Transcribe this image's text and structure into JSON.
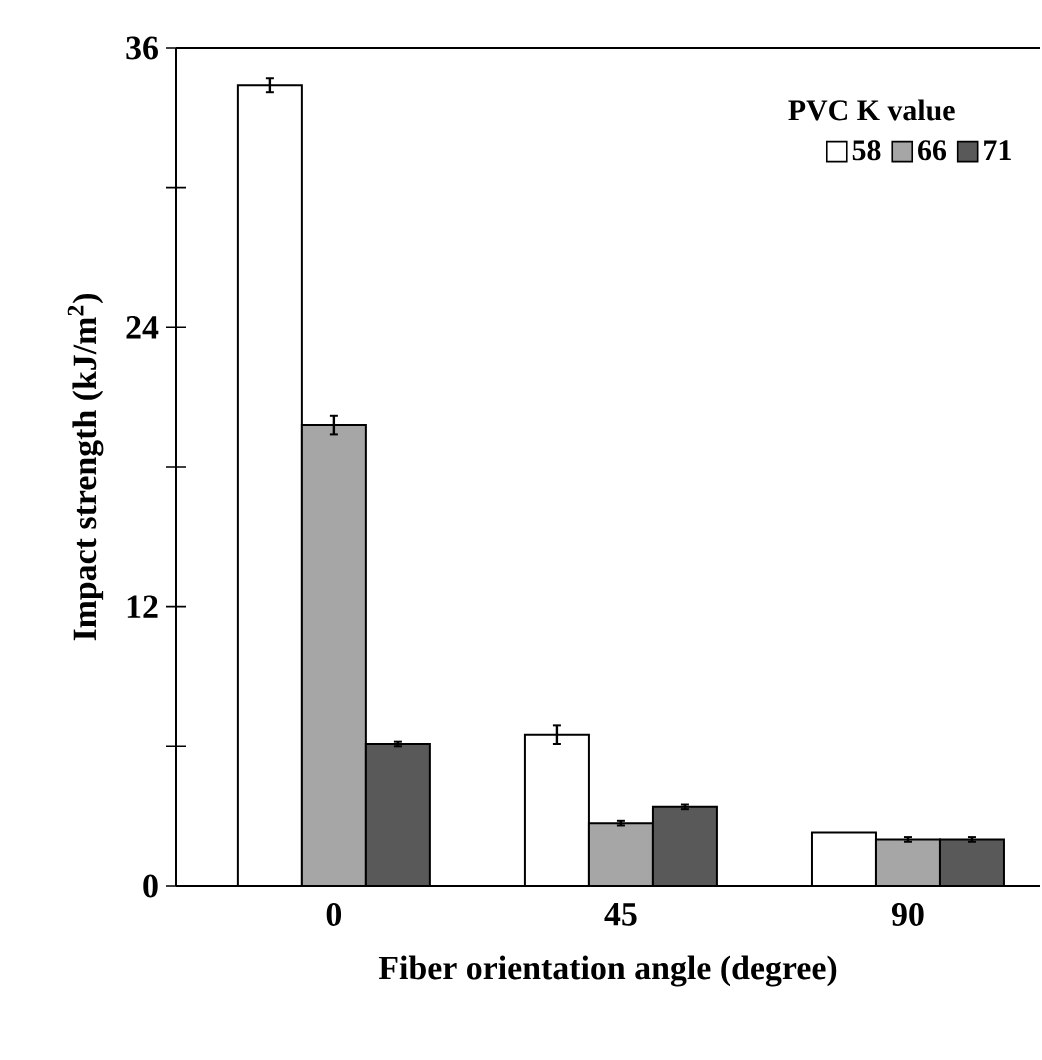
{
  "chart_data": {
    "type": "bar",
    "xlabel": "Fiber orientation angle (degree)",
    "ylabel": "Impact strength (kJ/m$^{2}$)",
    "legend_title": "PVC K value",
    "categories": [
      "0",
      "45",
      "90"
    ],
    "series": [
      {
        "name": "58",
        "color": "#ffffff",
        "values": [
          34.4,
          6.5,
          2.3
        ],
        "errors": [
          0.3,
          0.4,
          null
        ]
      },
      {
        "name": "66",
        "color": "#a6a6a6",
        "values": [
          19.8,
          2.7,
          2.0
        ],
        "errors": [
          0.4,
          0.1,
          0.1
        ]
      },
      {
        "name": "71",
        "color": "#595959",
        "values": [
          6.1,
          3.4,
          2.0
        ],
        "errors": [
          0.1,
          0.1,
          0.1
        ]
      }
    ],
    "ylim": [
      0,
      36
    ],
    "yticks": [
      0,
      {
        "value": 6,
        "label": null
      },
      12,
      {
        "value": 18,
        "label": null
      },
      24,
      {
        "value": 30,
        "label": null
      },
      36
    ],
    "grid": false,
    "legend": "top right"
  }
}
